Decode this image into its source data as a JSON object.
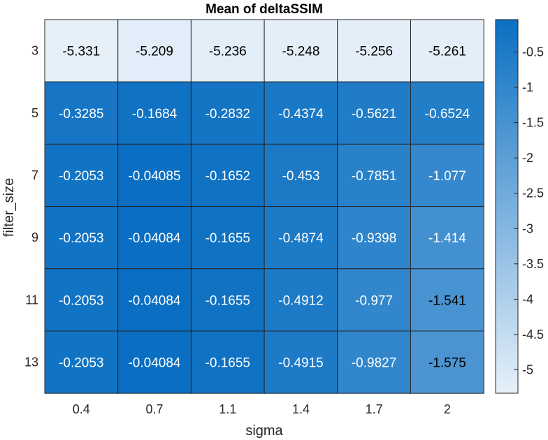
{
  "chart_data": {
    "type": "heatmap",
    "title": "Mean of deltaSSIM",
    "xlabel": "sigma",
    "ylabel": "filter_size",
    "x_categories": [
      "0.4",
      "0.7",
      "1.1",
      "1.4",
      "1.7",
      "2"
    ],
    "y_categories": [
      "3",
      "5",
      "7",
      "9",
      "11",
      "13"
    ],
    "values": [
      [
        -5.331,
        -5.209,
        -5.236,
        -5.248,
        -5.256,
        -5.261
      ],
      [
        -0.3285,
        -0.1684,
        -0.2832,
        -0.4374,
        -0.5621,
        -0.6524
      ],
      [
        -0.2053,
        -0.04085,
        -0.1652,
        -0.453,
        -0.7851,
        -1.077
      ],
      [
        -0.2053,
        -0.04084,
        -0.1655,
        -0.4874,
        -0.9398,
        -1.414
      ],
      [
        -0.2053,
        -0.04084,
        -0.1655,
        -0.4912,
        -0.977,
        -1.541
      ],
      [
        -0.2053,
        -0.04084,
        -0.1655,
        -0.4915,
        -0.9827,
        -1.575
      ]
    ],
    "cell_labels": [
      [
        "-5.331",
        "-5.209",
        "-5.236",
        "-5.248",
        "-5.256",
        "-5.261"
      ],
      [
        "-0.3285",
        "-0.1684",
        "-0.2832",
        "-0.4374",
        "-0.5621",
        "-0.6524"
      ],
      [
        "-0.2053",
        "-0.04085",
        "-0.1652",
        "-0.453",
        "-0.7851",
        "-1.077"
      ],
      [
        "-0.2053",
        "-0.04084",
        "-0.1655",
        "-0.4874",
        "-0.9398",
        "-1.414"
      ],
      [
        "-0.2053",
        "-0.04084",
        "-0.1655",
        "-0.4912",
        "-0.977",
        "-1.541"
      ],
      [
        "-0.2053",
        "-0.04084",
        "-0.1655",
        "-0.4915",
        "-0.9827",
        "-1.575"
      ]
    ],
    "colorbar": {
      "ticks": [
        "-0.5",
        "-1",
        "-1.5",
        "-2",
        "-2.5",
        "-3",
        "-3.5",
        "-4",
        "-4.5",
        "-5"
      ],
      "tick_values": [
        -0.5,
        -1,
        -1.5,
        -2,
        -2.5,
        -3,
        -3.5,
        -4,
        -4.5,
        -5
      ],
      "range": [
        -5.331,
        -0.04084
      ],
      "color_low": "#e6f0f9",
      "color_high": "#0a6fc2"
    }
  }
}
